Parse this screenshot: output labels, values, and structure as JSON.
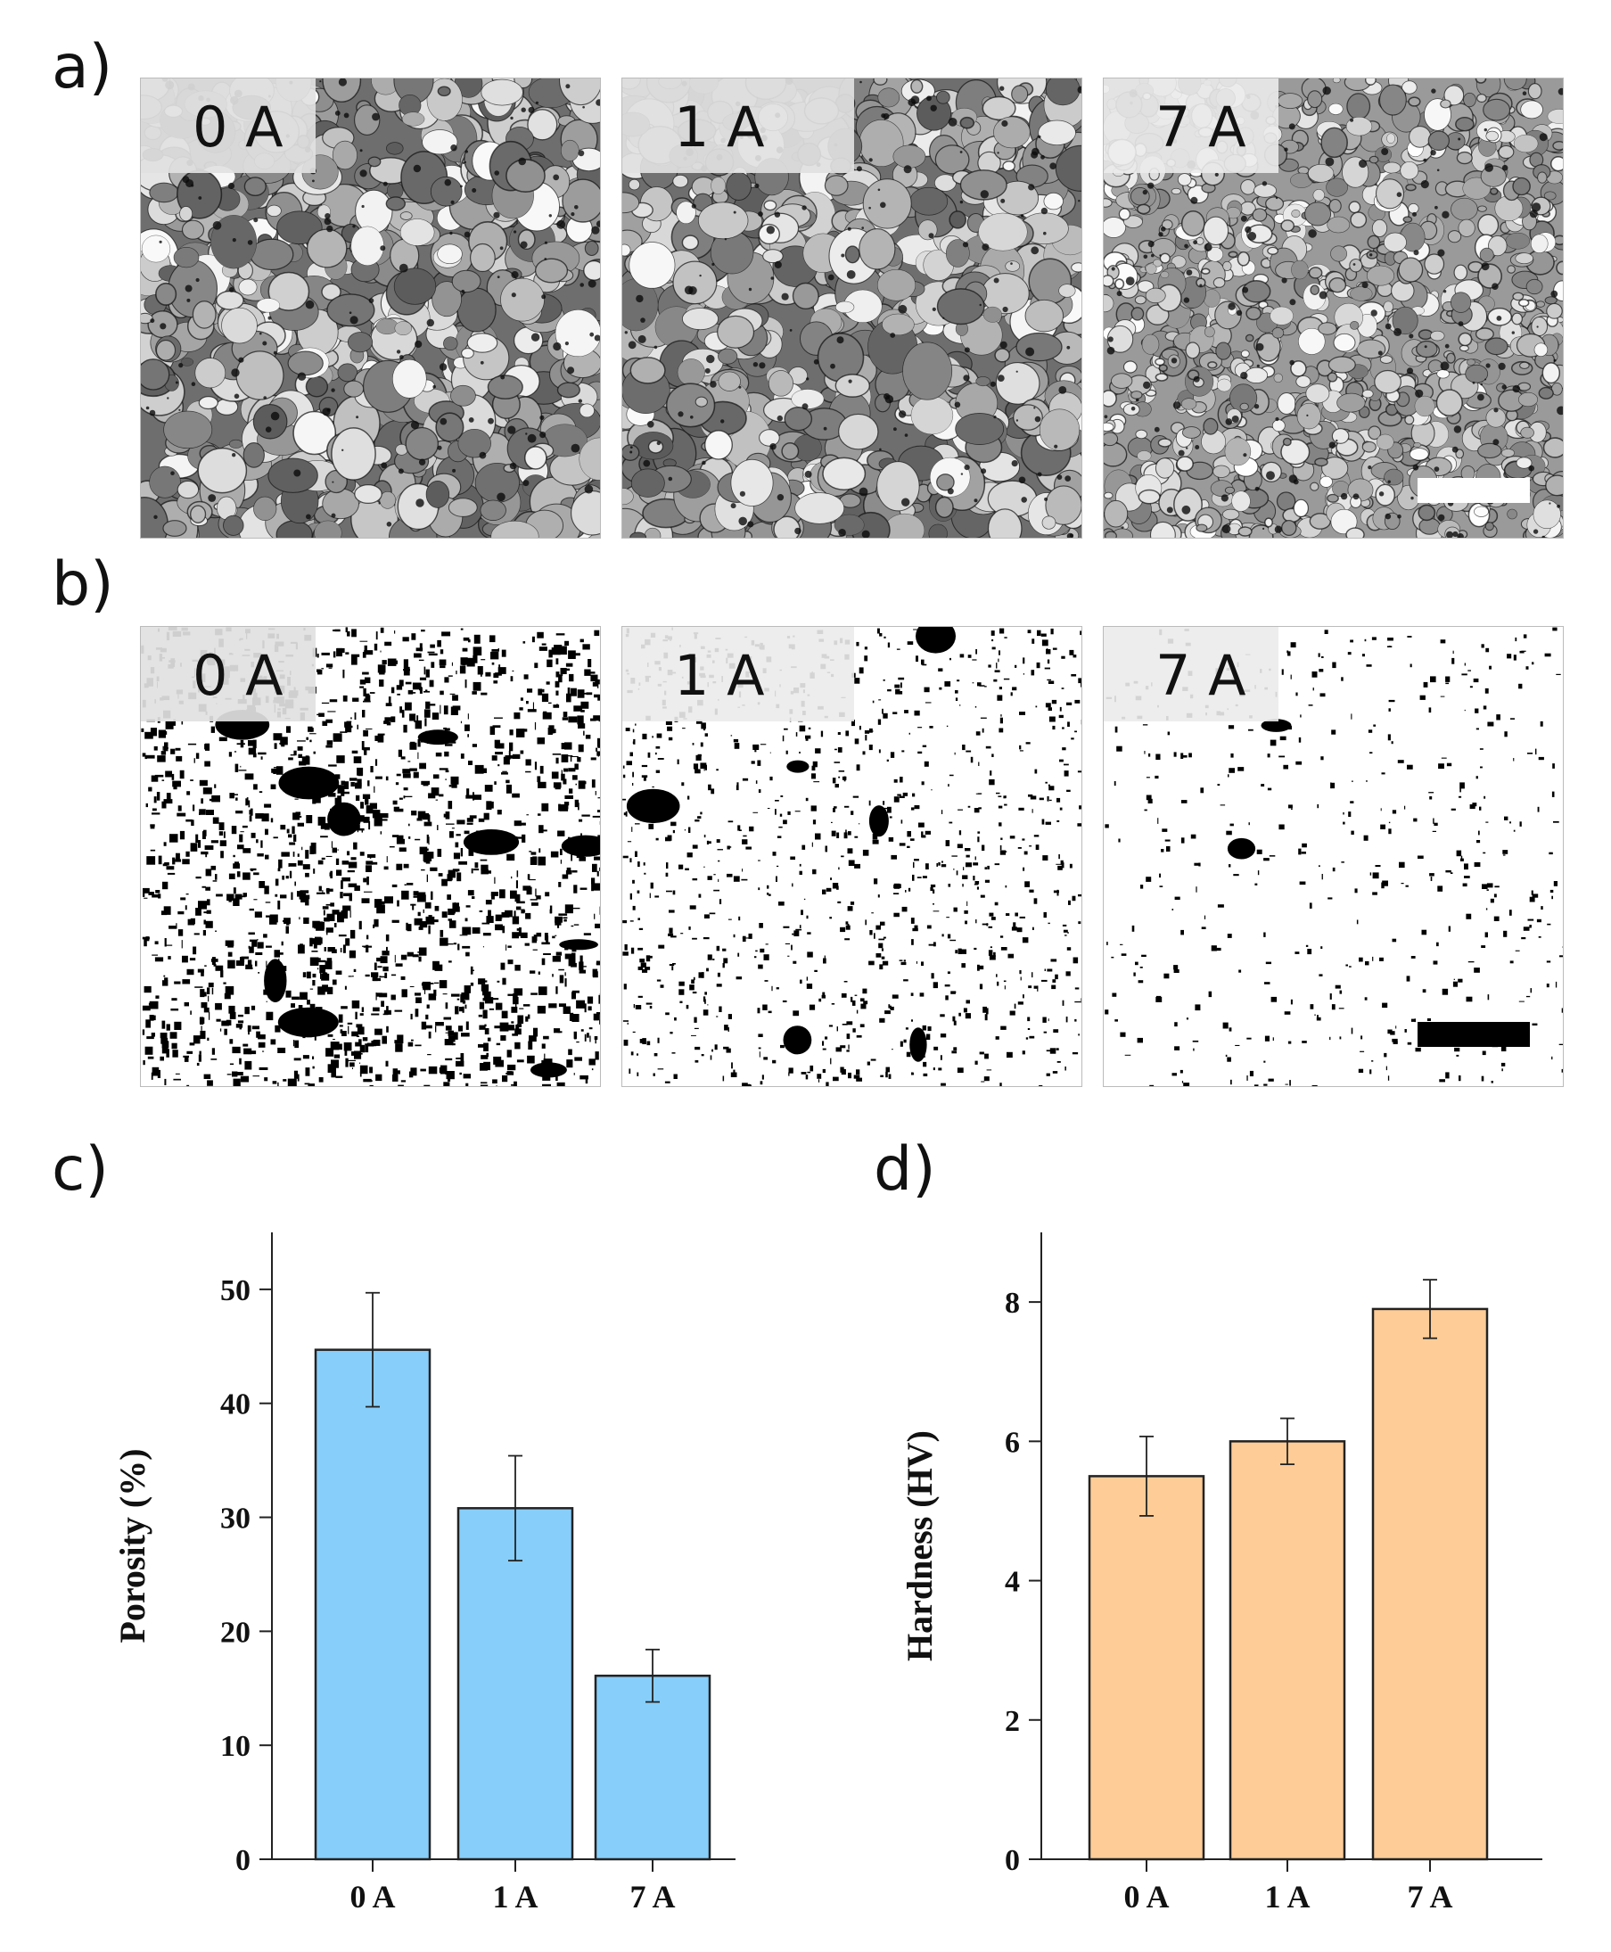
{
  "panels": {
    "a": {
      "letter": "a)",
      "tiles": [
        "0 A",
        "1 A",
        "7 A"
      ]
    },
    "b": {
      "letter": "b)",
      "tiles": [
        "0 A",
        "1 A",
        "7 A"
      ]
    },
    "c": {
      "letter": "c)"
    },
    "d": {
      "letter": "d)"
    }
  },
  "colors": {
    "porosity_bar": "#87cefa",
    "hardness_bar": "#fdcc97",
    "scale_bar_a": "#ffffff",
    "scale_bar_b": "#000000"
  },
  "chart_data": [
    {
      "type": "bar",
      "panel": "c)",
      "categories": [
        "0 A",
        "1 A",
        "7 A"
      ],
      "values": [
        44.7,
        30.8,
        16.1
      ],
      "errors": [
        5.0,
        4.6,
        2.3
      ],
      "xlabel": "",
      "ylabel": "Porosity (%)",
      "ylim": [
        0,
        55
      ],
      "yticks": [
        0,
        10,
        20,
        30,
        40,
        50
      ],
      "grid": false
    },
    {
      "type": "bar",
      "panel": "d)",
      "categories": [
        "0 A",
        "1 A",
        "7 A"
      ],
      "values": [
        5.5,
        6.0,
        7.9
      ],
      "errors": [
        0.57,
        0.33,
        0.42
      ],
      "xlabel": "",
      "ylabel": "Hardness (HV)",
      "ylim": [
        0,
        9
      ],
      "yticks": [
        0,
        2,
        4,
        6,
        8
      ],
      "grid": false
    }
  ]
}
